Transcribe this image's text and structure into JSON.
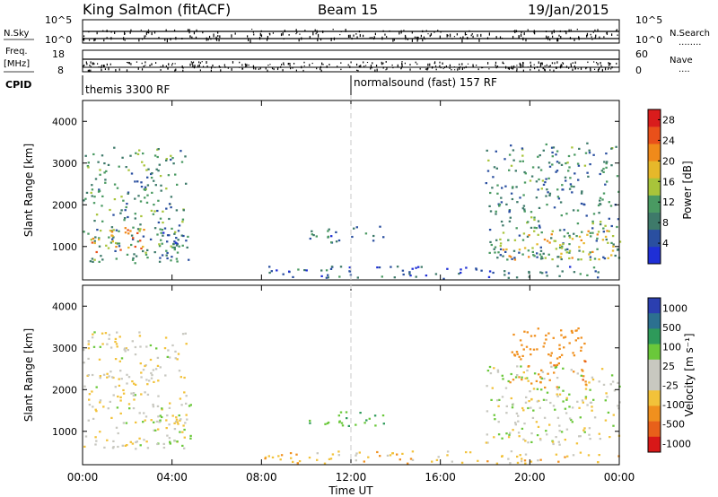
{
  "header": {
    "station": "King Salmon (fitACF)",
    "beam": "Beam 15",
    "date": "19/Jan/2015"
  },
  "ops_panels": {
    "nsky_label": "N.Sky",
    "nsearch_label": "N.Search",
    "nsearch_dots": "........",
    "freq_label_top": "Freq.",
    "freq_label_unit": "[MHz]",
    "nave_label": "Nave",
    "nave_dots": "....",
    "cpid_label": "CPID",
    "noise_left_ticks": [
      "10^5",
      "10^0"
    ],
    "noise_right_ticks": [
      "10^5",
      "10^0"
    ],
    "freq_left_ticks": [
      "18",
      "8"
    ],
    "freq_right_ticks": [
      "60",
      "0"
    ],
    "cpid_segments": [
      {
        "name": "themis 3300 RF",
        "start_hour": 0,
        "end_hour": 12
      },
      {
        "name": "normalsound (fast) 157 RF",
        "start_hour": 12,
        "end_hour": 24
      }
    ]
  },
  "colors": {
    "power_scale": [
      "#1f2fd6",
      "#2a4fa0",
      "#3e7a6a",
      "#4a9a62",
      "#a8c43a",
      "#e6b82a",
      "#f08a1a",
      "#e9501a",
      "#d91c1c"
    ],
    "velocity_scale": [
      "#2b3fb0",
      "#2c7090",
      "#2e9a5a",
      "#6ac83a",
      "#c8c8c0",
      "#c8c8c0",
      "#f2c23a",
      "#f0901e",
      "#e8601a",
      "#d81818"
    ]
  },
  "chart_data": [
    {
      "type": "heatmap",
      "name": "Power",
      "xlabel": "",
      "ylabel": "Slant Range [km]",
      "xlim": [
        0,
        24
      ],
      "ylim": [
        200,
        4500
      ],
      "yticks": [
        1000,
        2000,
        3000,
        4000
      ],
      "colorbar_label": "Power [dB]",
      "colorbar_ticks": [
        "4",
        "8",
        "12",
        "16",
        "20",
        "24",
        "28"
      ],
      "colorbar_range": [
        0,
        30
      ],
      "regions": [
        {
          "t0": 0.0,
          "t1": 4.6,
          "r0": 600,
          "r1": 3400,
          "mean_db": 10
        },
        {
          "t0": 0.3,
          "t1": 2.8,
          "r0": 800,
          "r1": 1500,
          "mean_db": 20
        },
        {
          "t0": 3.3,
          "t1": 4.8,
          "r0": 700,
          "r1": 1700,
          "mean_db": 8
        },
        {
          "t0": 10.0,
          "t1": 13.5,
          "r0": 1100,
          "r1": 1500,
          "mean_db": 8
        },
        {
          "t0": 18.0,
          "t1": 24.0,
          "r0": 700,
          "r1": 3500,
          "mean_db": 9
        },
        {
          "t0": 18.5,
          "t1": 24.0,
          "r0": 700,
          "r1": 1400,
          "mean_db": 17
        },
        {
          "t0": 8.0,
          "t1": 24.0,
          "r0": 250,
          "r1": 550,
          "mean_db": 6
        }
      ]
    },
    {
      "type": "heatmap",
      "name": "Velocity",
      "xlabel": "Time UT",
      "ylabel": "Slant Range [km]",
      "xlim": [
        0,
        24
      ],
      "ylim": [
        200,
        4500
      ],
      "yticks": [
        1000,
        2000,
        3000,
        4000
      ],
      "xticks": [
        "00:00",
        "04:00",
        "08:00",
        "12:00",
        "16:00",
        "20:00",
        "00:00"
      ],
      "colorbar_label": "Velocity [m s⁻¹]",
      "colorbar_ticks": [
        "1000",
        "500",
        "100",
        "25",
        "-25",
        "-100",
        "-500",
        "-1000"
      ],
      "regions": [
        {
          "t0": 0.0,
          "t1": 4.6,
          "r0": 600,
          "r1": 3400,
          "mean_v": -20
        },
        {
          "t0": 3.3,
          "t1": 4.8,
          "r0": 700,
          "r1": 1700,
          "mean_v": 0
        },
        {
          "t0": 10.0,
          "t1": 13.5,
          "r0": 1100,
          "r1": 1500,
          "mean_v": 80
        },
        {
          "t0": 18.0,
          "t1": 24.0,
          "r0": 700,
          "r1": 2600,
          "mean_v": 0
        },
        {
          "t0": 19.0,
          "t1": 22.5,
          "r0": 2000,
          "r1": 3500,
          "mean_v": -450
        },
        {
          "t0": 8.0,
          "t1": 24.0,
          "r0": 250,
          "r1": 550,
          "mean_v": -60
        }
      ]
    }
  ]
}
